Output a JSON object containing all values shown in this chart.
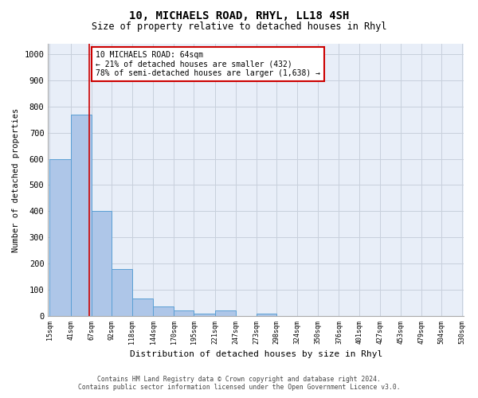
{
  "title": "10, MICHAELS ROAD, RHYL, LL18 4SH",
  "subtitle": "Size of property relative to detached houses in Rhyl",
  "xlabel": "Distribution of detached houses by size in Rhyl",
  "ylabel": "Number of detached properties",
  "bar_edges": [
    15,
    41,
    67,
    92,
    118,
    144,
    170,
    195,
    221,
    247,
    273,
    298,
    324,
    350,
    376,
    401,
    427,
    453,
    479,
    504,
    530
  ],
  "bar_heights": [
    600,
    770,
    400,
    180,
    65,
    35,
    20,
    10,
    20,
    0,
    10,
    0,
    0,
    0,
    0,
    0,
    0,
    0,
    0,
    0
  ],
  "bar_color": "#aec6e8",
  "bar_edge_color": "#5a9fd4",
  "grid_color": "#c8d0dc",
  "bg_color": "#e8eef8",
  "property_line_x": 64,
  "property_line_color": "#cc0000",
  "annotation_text": "10 MICHAELS ROAD: 64sqm\n← 21% of detached houses are smaller (432)\n78% of semi-detached houses are larger (1,638) →",
  "annotation_box_color": "#ffffff",
  "annotation_box_edge_color": "#cc0000",
  "ylim": [
    0,
    1040
  ],
  "yticks": [
    0,
    100,
    200,
    300,
    400,
    500,
    600,
    700,
    800,
    900,
    1000
  ],
  "footer_line1": "Contains HM Land Registry data © Crown copyright and database right 2024.",
  "footer_line2": "Contains public sector information licensed under the Open Government Licence v3.0."
}
